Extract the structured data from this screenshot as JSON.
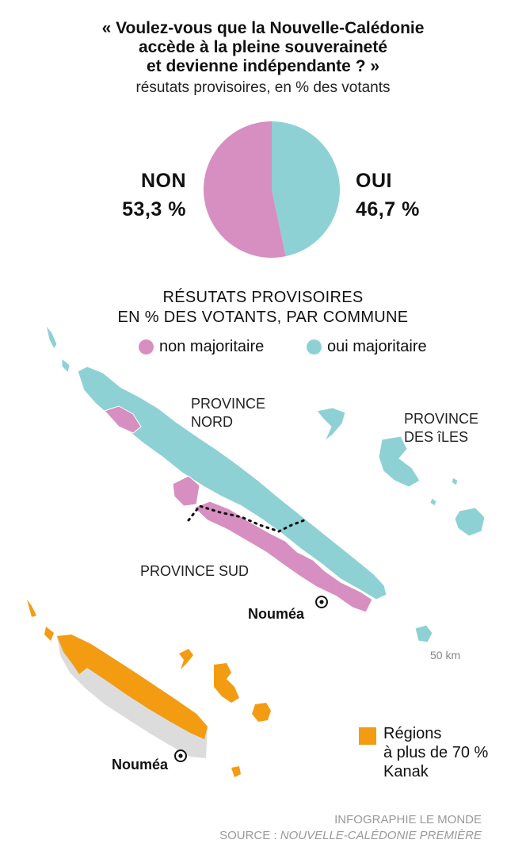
{
  "title_lines": [
    "« Voulez-vous que la Nouvelle-Calédonie",
    "accède à la pleine souveraineté",
    "et devienne indépendante ? »"
  ],
  "subtitle": "résutats provisoires, en % des votants",
  "chart_data": {
    "type": "pie",
    "title": "« Voulez-vous que la Nouvelle-Calédonie accède à la pleine souveraineté et devienne indépendante ? »",
    "subtitle": "résutats provisoires, en % des votants",
    "slices": [
      {
        "label": "NON",
        "value": 53.3,
        "value_label": "53,3 %",
        "color": "#d68fc0"
      },
      {
        "label": "OUI",
        "value": 46.7,
        "value_label": "46,7 %",
        "color": "#8ed1d4"
      }
    ]
  },
  "map_heading_lines": [
    "RÉSUTATS PROVISOIRES",
    "EN % DES VOTANTS, PAR COMMUNE"
  ],
  "legend": [
    {
      "label": "non majoritaire",
      "color": "#d68fc0"
    },
    {
      "label": "oui majoritaire",
      "color": "#8ed1d4"
    }
  ],
  "regions": {
    "nord": [
      "PROVINCE",
      "NORD"
    ],
    "iles": [
      "PROVINCE",
      "DES îLES"
    ],
    "sud": "PROVINCE SUD"
  },
  "city": "Nouméa",
  "scale": "50 km",
  "kanak_legend": {
    "lines": [
      "Régions",
      "à plus de 70 %",
      "Kanak"
    ],
    "color": "#f39c12"
  },
  "credits": [
    "INFOGRAPHIE LE MONDE",
    "SOURCE : ",
    "NOUVELLE-CALÉDONIE PREMIÈRE"
  ]
}
